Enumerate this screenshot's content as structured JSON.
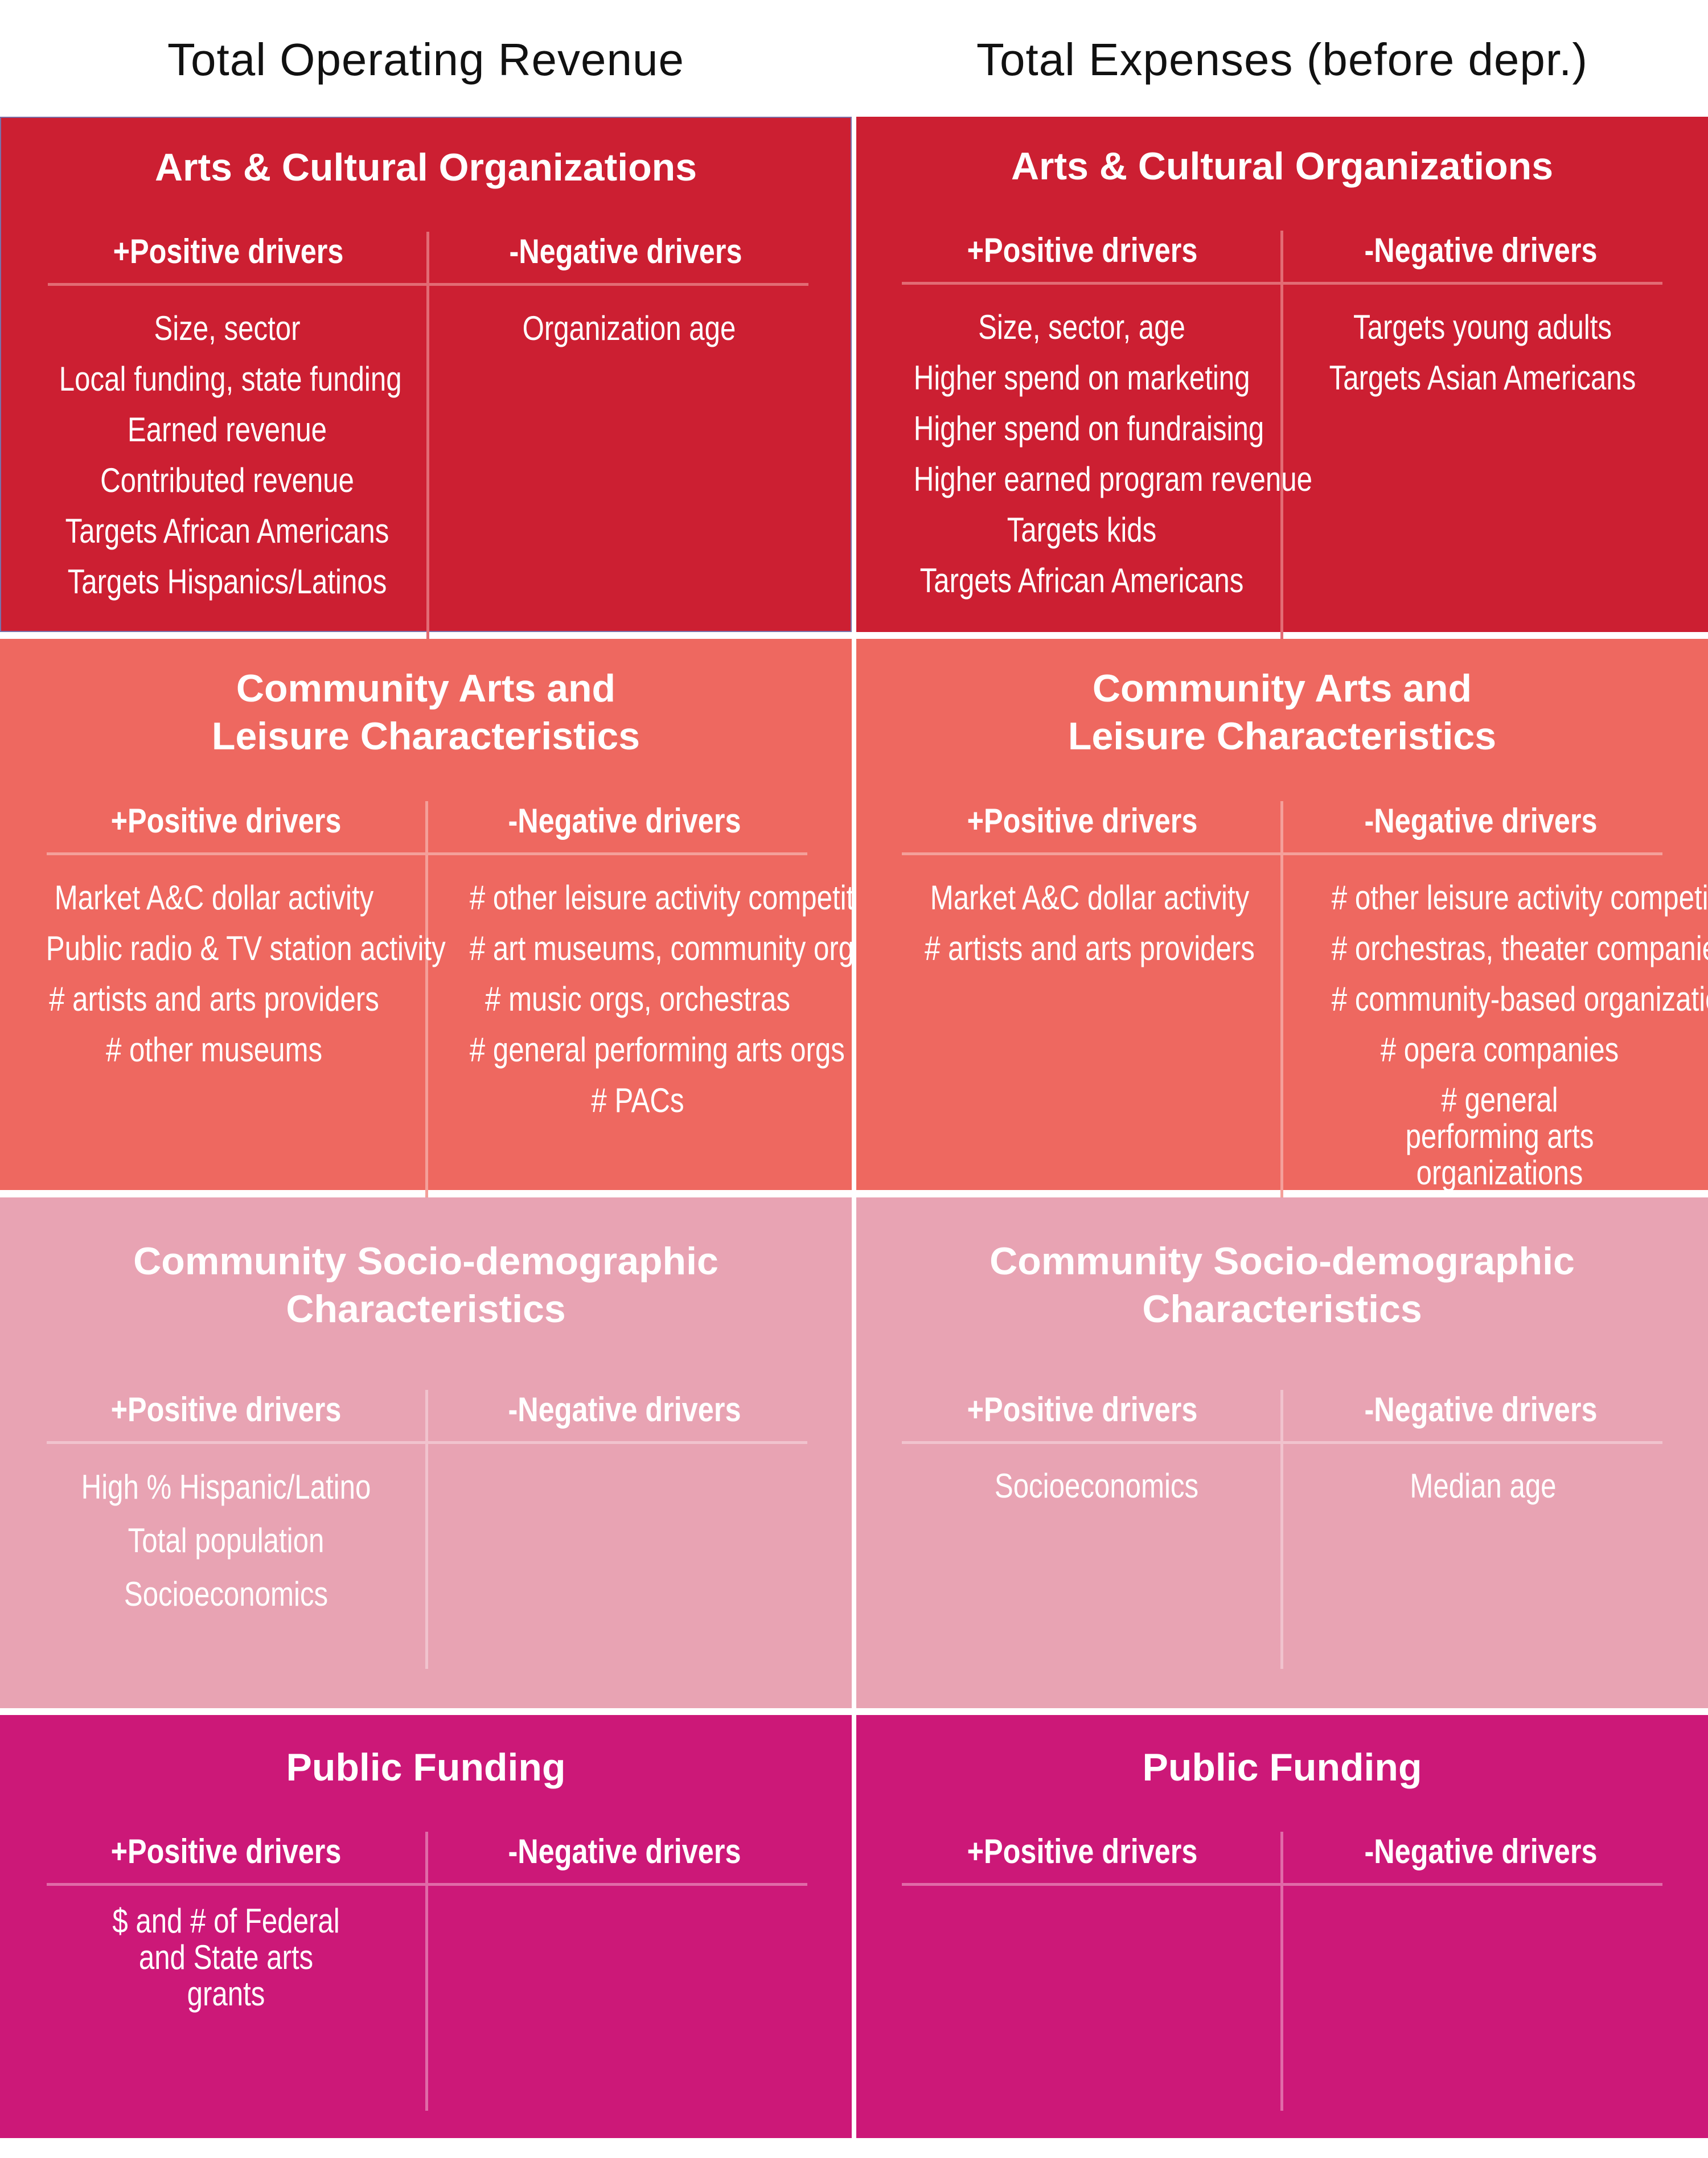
{
  "headers": {
    "left": "Total Operating Revenue",
    "right": "Total Expenses (before depr.)"
  },
  "colors": {
    "arts_cultural": "#CC1F32",
    "community_arts": "#EE6860",
    "socio_demographic": "#E8A3B3",
    "public_funding": "#CC1878"
  },
  "left": {
    "arts_cultural": {
      "title": "Arts & Cultural Organizations",
      "positive_label": "+Positive drivers",
      "negative_label": "-Negative drivers",
      "positive": [
        "Size, sector",
        "Local funding, state funding",
        "Earned revenue",
        "Contributed revenue",
        "Targets African Americans",
        "Targets Hispanics/Latinos"
      ],
      "negative": [
        "Organization age"
      ]
    },
    "community_arts": {
      "title_line1": "Community Arts and",
      "title_line2": "Leisure Characteristics",
      "positive_label": "+Positive drivers",
      "negative_label": "-Negative drivers",
      "positive": [
        "Market A&C dollar activity",
        "Public radio & TV station activity",
        "# artists and arts providers",
        "# other museums"
      ],
      "negative": [
        "# other leisure activity competitors",
        "# art museums, community orgs",
        "# music orgs, orchestras",
        "# general performing arts orgs",
        "# PACs"
      ]
    },
    "socio_demographic": {
      "title_line1": "Community Socio-demographic",
      "title_line2": "Characteristics",
      "positive_label": "+Positive drivers",
      "negative_label": "-Negative drivers",
      "positive": [
        "High % Hispanic/Latino",
        "Total population",
        "Socioeconomics"
      ],
      "negative": []
    },
    "public_funding": {
      "title": "Public Funding",
      "positive_label": "+Positive drivers",
      "negative_label": "-Negative drivers",
      "positive_wrapped": "$ and # of Federal and State arts grants",
      "negative": []
    }
  },
  "right": {
    "arts_cultural": {
      "title": "Arts & Cultural Organizations",
      "positive_label": "+Positive drivers",
      "negative_label": "-Negative drivers",
      "positive": [
        "Size, sector, age",
        "Higher spend on marketing",
        "Higher spend on fundraising",
        "Higher earned program revenue",
        "Targets kids",
        "Targets African Americans"
      ],
      "negative": [
        "Targets young adults",
        "Targets Asian Americans"
      ]
    },
    "community_arts": {
      "title_line1": "Community Arts and",
      "title_line2": "Leisure Characteristics",
      "positive_label": "+Positive drivers",
      "negative_label": "-Negative drivers",
      "positive": [
        "Market A&C dollar activity",
        "# artists and arts providers"
      ],
      "negative": [
        "# other leisure activity competitors",
        "# orchestras, theater companies",
        "# community-based organizations",
        "# opera companies"
      ],
      "negative_wrapped": "# general performing arts organizations"
    },
    "socio_demographic": {
      "title_line1": "Community Socio-demographic",
      "title_line2": "Characteristics",
      "positive_label": "+Positive drivers",
      "negative_label": "-Negative drivers",
      "positive": [
        "Socioeconomics"
      ],
      "negative": [
        "Median age"
      ]
    },
    "public_funding": {
      "title": "Public Funding",
      "positive_label": "+Positive drivers",
      "negative_label": "-Negative drivers",
      "positive": [],
      "negative": []
    }
  }
}
